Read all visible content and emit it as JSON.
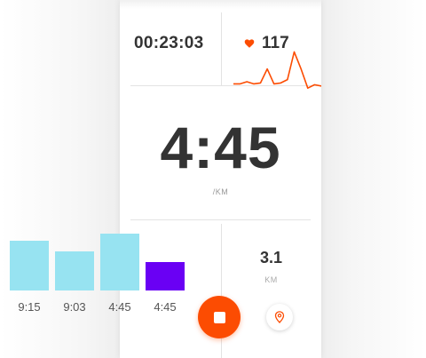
{
  "workout": {
    "elapsed_time": "00:23:03",
    "heart_rate": "117",
    "heart_rate_trace": [
      0.2,
      0.2,
      0.25,
      0.2,
      0.22,
      0.55,
      0.2,
      0.22,
      0.3,
      0.95,
      0.55,
      0.1,
      0.18,
      0.15
    ],
    "pace": "4:45",
    "pace_unit": "/KM",
    "distance": "3.1",
    "distance_unit": "KM"
  },
  "splits": {
    "items": [
      {
        "label": "9:15",
        "relative_height": 0.88,
        "color": "#97e3f1"
      },
      {
        "label": "9:03",
        "relative_height": 0.68,
        "color": "#97e3f1"
      },
      {
        "label": "4:45",
        "relative_height": 1.0,
        "color": "#97e3f1"
      },
      {
        "label": "4:45",
        "relative_height": 0.5,
        "color": "#6a00f4"
      }
    ]
  },
  "colors": {
    "accent": "#fc4c02",
    "text_dark": "#333333",
    "text_muted": "#999999"
  },
  "icons": {
    "heart": "heart-icon",
    "stop": "stop-icon",
    "location": "location-pin-icon"
  }
}
